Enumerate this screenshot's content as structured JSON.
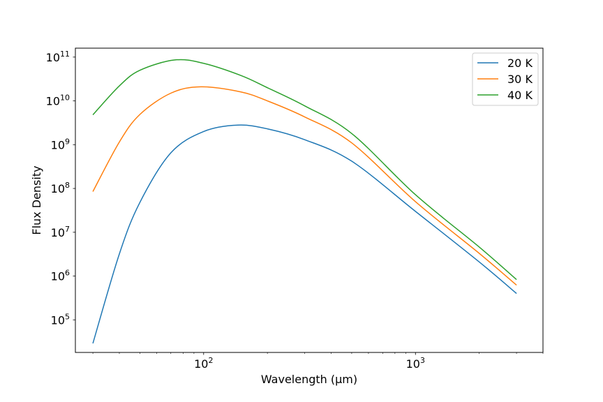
{
  "chart_data": {
    "type": "line",
    "title": "",
    "xlabel": "Wavelength (μm)",
    "ylabel": "Flux Density",
    "xscale": "log",
    "yscale": "log",
    "xlim": [
      24.8,
      4000
    ],
    "ylim": [
      18000,
      160000000000
    ],
    "x_major_ticks": [
      {
        "value": 100,
        "base": "10",
        "exp": "2"
      },
      {
        "value": 1000,
        "base": "10",
        "exp": "3"
      }
    ],
    "y_major_ticks": [
      {
        "value": 100000,
        "base": "10",
        "exp": "5"
      },
      {
        "value": 1000000,
        "base": "10",
        "exp": "6"
      },
      {
        "value": 10000000,
        "base": "10",
        "exp": "7"
      },
      {
        "value": 100000000,
        "base": "10",
        "exp": "8"
      },
      {
        "value": 1000000000,
        "base": "10",
        "exp": "9"
      },
      {
        "value": 10000000000,
        "base": "10",
        "exp": "10"
      },
      {
        "value": 100000000000,
        "base": "10",
        "exp": "11"
      }
    ],
    "grid": false,
    "legend_position": "top-right",
    "series": [
      {
        "name": "20 K",
        "color": "#1f77b4",
        "x": [
          30,
          40,
          50,
          70,
          100,
          145,
          200,
          300,
          500,
          1000,
          2000,
          3000
        ],
        "y": [
          29000,
          3200000,
          48000000,
          650000000,
          2000000000,
          2800000000,
          2300000000,
          1300000000,
          420000000,
          30000000,
          2100000,
          400000
        ]
      },
      {
        "name": "30 K",
        "color": "#ff7f0e",
        "x": [
          30,
          40,
          50,
          70,
          97,
          150,
          200,
          300,
          500,
          1000,
          2000,
          3000
        ],
        "y": [
          85000000,
          1150000000,
          4900000000,
          15000000000,
          21000000000,
          16000000000,
          10000000000,
          4300000000,
          1100000000,
          50000000,
          3300000,
          620000
        ]
      },
      {
        "name": "40 K",
        "color": "#2ca02c",
        "x": [
          30,
          40,
          50,
          73,
          100,
          150,
          200,
          300,
          500,
          1000,
          2000,
          3000
        ],
        "y": [
          4800000000,
          22000000000,
          50000000000,
          86000000000,
          72000000000,
          38000000000,
          20000000000,
          7700000000,
          1800000000,
          72000000,
          4600000,
          830000
        ]
      }
    ]
  }
}
